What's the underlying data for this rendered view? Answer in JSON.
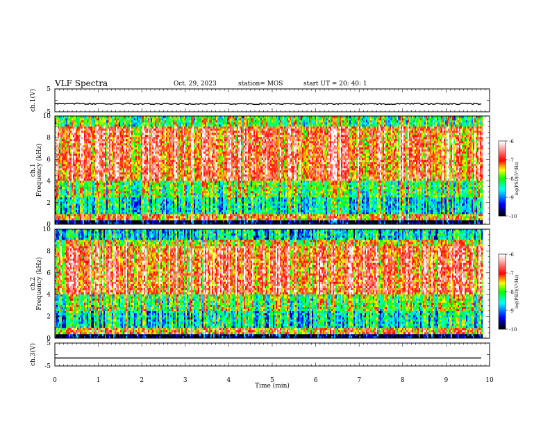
{
  "header": {
    "title": "VLF Spectra",
    "date": "Oct. 29, 2023",
    "station": "station= MOS",
    "start": "start  UT =   20: 40: 1"
  },
  "chart_data": {
    "type": "heatmap",
    "title": "VLF Spectra",
    "xlabel": "Time  (min)",
    "xlim": [
      0,
      10
    ],
    "xticks": [
      "0",
      "1",
      "2",
      "3",
      "4",
      "5",
      "6",
      "7",
      "8",
      "9",
      "10"
    ],
    "panels": [
      {
        "id": "ch1-waveform",
        "type": "line",
        "ylabel": "ch.1(V)",
        "ylim": [
          -5,
          5
        ],
        "yticks": [
          "5",
          "-5"
        ],
        "baseline": -1.5
      },
      {
        "id": "ch1-spectrogram",
        "type": "heatmap",
        "ylabel": "ch.1",
        "ylabel2": "Frequency  (kHz)",
        "ylim": [
          0,
          10
        ],
        "yticks": [
          "0",
          "2",
          "4",
          "6",
          "8",
          "10"
        ],
        "x_end": 9.83
      },
      {
        "id": "ch2-spectrogram",
        "type": "heatmap",
        "ylabel": "ch.2",
        "ylabel2": "Frequency  (kHz)",
        "ylim": [
          0,
          10
        ],
        "yticks": [
          "0",
          "2",
          "4",
          "6",
          "8",
          "10"
        ],
        "x_end": 9.83
      },
      {
        "id": "ch3-waveform",
        "type": "line",
        "ylabel": "ch.3(V)",
        "ylim": [
          -5,
          5
        ],
        "yticks": [
          "5",
          "-5"
        ],
        "baseline": -1.5
      }
    ],
    "colorbar": {
      "label": "log(PSD)(V²/Hz)",
      "range": [
        -10,
        -6
      ],
      "ticks": [
        "-6",
        "-7",
        "-8",
        "-9",
        "-10"
      ]
    },
    "colormap": [
      "#000000",
      "#0000ff",
      "#00ffff",
      "#00ff00",
      "#ffff00",
      "#ff0000",
      "#ffffff"
    ]
  }
}
